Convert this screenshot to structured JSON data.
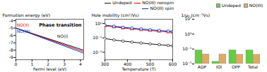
{
  "chart_data": [
    {
      "type": "line",
      "title": "Phase transition",
      "xlabel": "Fermi level (eV)",
      "ylabel": "Formation energy (eV)",
      "x": [
        0,
        4.2
      ],
      "series": [
        {
          "color": "#111111",
          "values": [
            -5.0,
            -7.9988
          ]
        },
        {
          "color": "#dd0000",
          "values": [
            -5.0,
            -8.192
          ]
        },
        {
          "color": "#0033cc",
          "values": [
            -5.0,
            -8.402
          ]
        }
      ],
      "annotations": [
        {
          "text": "NO(II)",
          "x": 0.05,
          "y": -4.6,
          "color": "#dd0000"
        },
        {
          "text": "NO(III)",
          "x": 0.05,
          "y": -5.42,
          "color": "#0033cc"
        },
        {
          "text": "NO(I)",
          "x": 2.55,
          "y": -6.1,
          "color": "#111111"
        }
      ],
      "xlim": [
        0,
        4.2
      ],
      "ylim": [
        -9.3,
        -3.8
      ],
      "xticks": [
        0,
        1,
        2,
        3,
        4
      ],
      "yticks": [
        -4,
        -5,
        -6,
        -7,
        -8,
        -9
      ]
    },
    {
      "type": "line",
      "xlabel": "Temperature (T)",
      "ylabel": "Hole mobility (cm²/Vs)",
      "x": [
        300,
        340,
        380,
        420,
        460,
        500,
        540,
        580,
        600
      ],
      "series": [
        {
          "name": "Undoped",
          "color": "#111111",
          "marker": "circle",
          "values": [
            0.09,
            0.072,
            0.06,
            0.051,
            0.044,
            0.038,
            0.034,
            0.03,
            0.028
          ]
        },
        {
          "name": "NO(III) nonspin",
          "color": "#dd0000",
          "marker": "triangle",
          "values": [
            0.7,
            0.58,
            0.49,
            0.42,
            0.37,
            0.33,
            0.29,
            0.26,
            0.25
          ]
        },
        {
          "name": "NO(III) spin",
          "color": "#0033cc",
          "marker": "square",
          "values": [
            0.78,
            0.65,
            0.55,
            0.48,
            0.42,
            0.37,
            0.33,
            0.3,
            0.28
          ]
        }
      ],
      "log": "y",
      "xlim": [
        300,
        600
      ],
      "ylim": [
        0.003,
        2
      ],
      "xticks": [
        300,
        400,
        500,
        600
      ],
      "yticks": [
        {
          "value": 0.01,
          "label": "10⁻²"
        },
        {
          "value": 0.1,
          "label": "10⁻¹"
        },
        {
          "value": 1,
          "label": "10⁰"
        }
      ],
      "legend": "top"
    },
    {
      "type": "bar",
      "ylabel": "1/μₕ (cm⁻²Vs)",
      "categories": [
        "ADP",
        "IOI",
        "OPP",
        "Total"
      ],
      "series": [
        {
          "name": "Undoped",
          "color": "#66cc44",
          "values": [
            0.05,
            4e-05,
            0.05,
            0.05
          ]
        },
        {
          "name": "NO(III)",
          "color": "#ddaa66",
          "values": [
            0.004,
            0.004,
            0.003,
            0.003
          ]
        }
      ],
      "log": "y",
      "ylim": [
        1e-05,
        10000000
      ],
      "yticks": [
        {
          "value": 1e-05,
          "label": "10⁻⁵"
        },
        {
          "value": 0.1,
          "label": "10⁻¹"
        },
        {
          "value": 1000,
          "label": "10³"
        },
        {
          "value": 10000000,
          "label": "10⁷"
        }
      ],
      "legend": "top"
    }
  ]
}
